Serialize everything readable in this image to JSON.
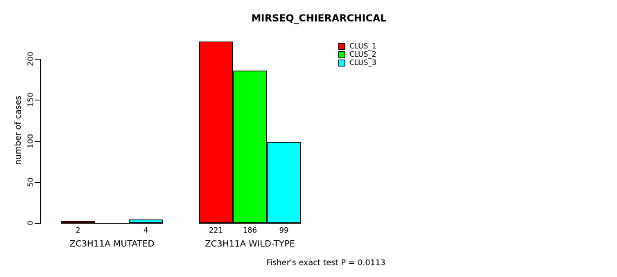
{
  "title": "MIRSEQ_CHIERARCHICAL",
  "footnote": "Fisher's exact test P = 0.0113",
  "colors": {
    "clus_1": "#ff0000",
    "clus_2": "#00ff00",
    "clus_3": "#00ffff",
    "bar_border": "#000000",
    "axis": "#000000"
  },
  "chart_data": {
    "type": "bar",
    "title": "MIRSEQ_CHIERARCHICAL",
    "xlabel": "",
    "ylabel": "number of cases",
    "ylim": [
      0,
      200
    ],
    "yticks": [
      "0",
      "50",
      "100",
      "150",
      "200"
    ],
    "ytick_values": [
      0,
      50,
      100,
      150,
      200
    ],
    "grid": false,
    "legend_position": "top-right-inside",
    "categories": [
      "ZC3H11A MUTATED",
      "ZC3H11A WILD-TYPE"
    ],
    "series": [
      {
        "name": "CLUS_1",
        "color": "#ff0000",
        "values": [
          2,
          221
        ]
      },
      {
        "name": "CLUS_2",
        "color": "#00ff00",
        "values": [
          0,
          186
        ]
      },
      {
        "name": "CLUS_3",
        "color": "#00ffff",
        "values": [
          4,
          99
        ]
      }
    ],
    "bar_value_labels": [
      [
        "2",
        "",
        "4"
      ],
      [
        "221",
        "186",
        "99"
      ]
    ],
    "annotation": "Fisher's exact test P = 0.0113"
  }
}
